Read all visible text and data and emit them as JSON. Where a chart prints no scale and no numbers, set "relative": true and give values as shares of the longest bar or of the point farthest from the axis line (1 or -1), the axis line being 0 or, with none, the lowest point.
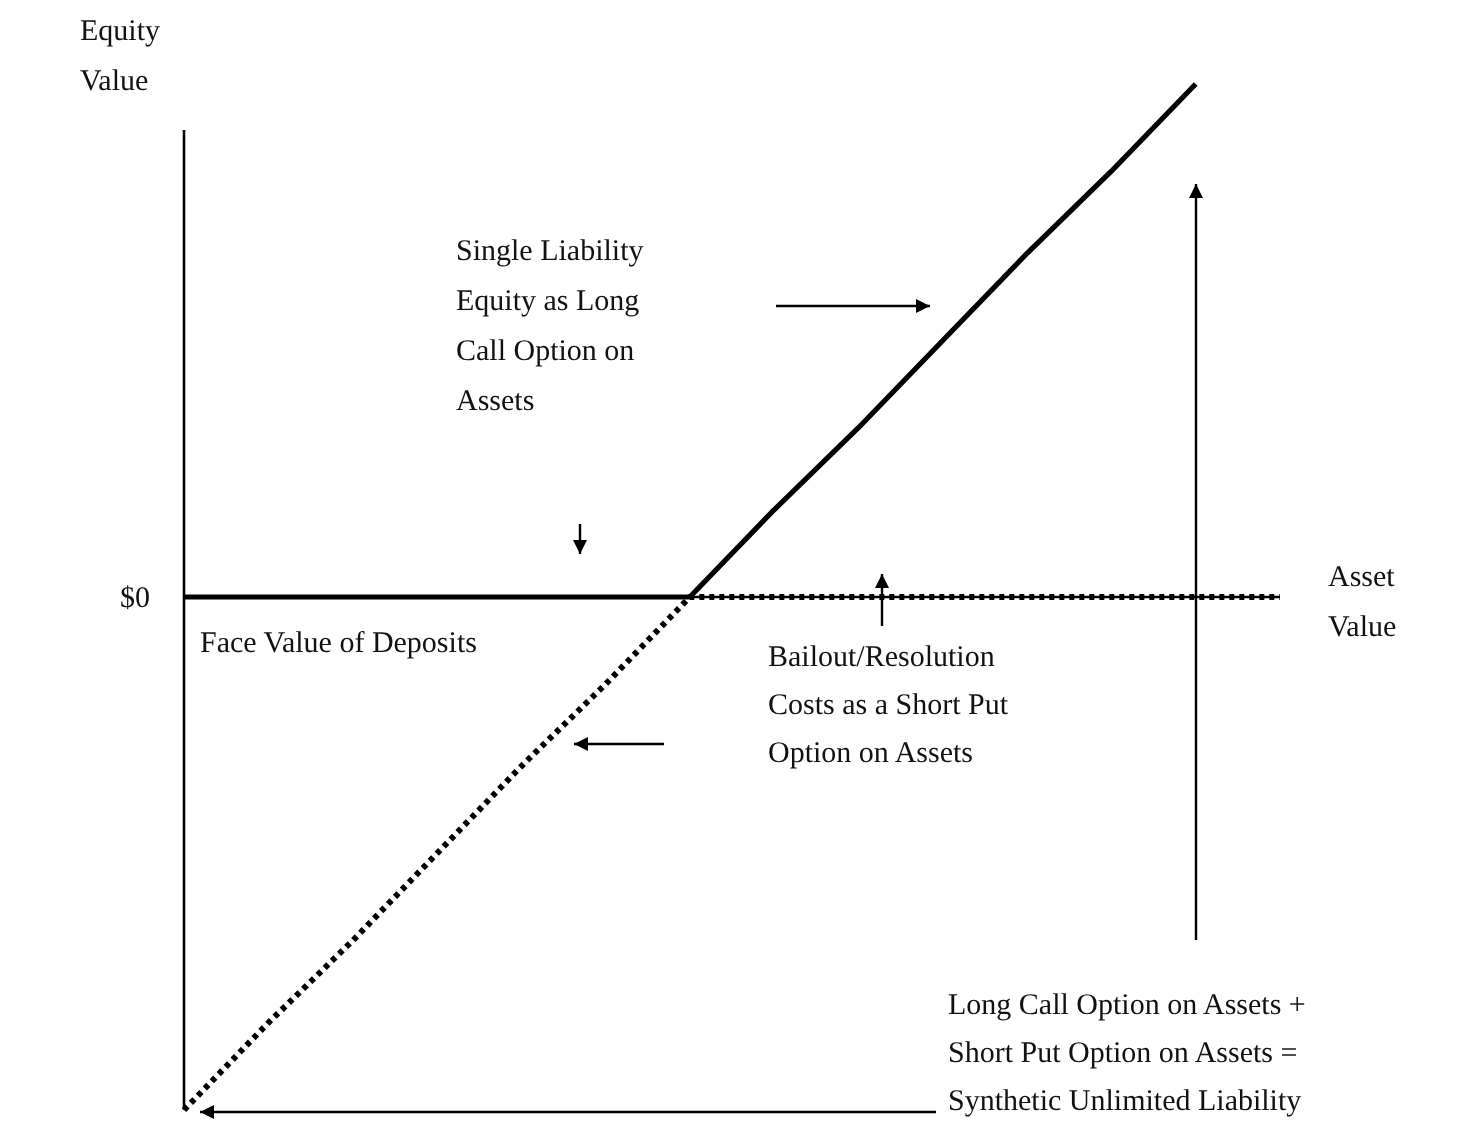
{
  "chart_data": {
    "type": "line",
    "relative": true,
    "xlabel": "Asset\nValue",
    "ylabel": "Equity\nValue",
    "categories": [
      null,
      null,
      null,
      null,
      null,
      null,
      null,
      null,
      null,
      null,
      null,
      null,
      null,
      null
    ],
    "series": [
      {
        "color": "#000000",
        "line_style": "solid",
        "values": [
          0,
          0,
          0,
          0,
          0,
          0,
          0,
          0.17,
          0.33,
          0.5,
          0.67,
          0.83,
          1,
          null
        ]
      },
      {
        "color": "#000000",
        "line_style": "dotted",
        "values": [
          -1,
          -0.83,
          -0.67,
          -0.5,
          -0.33,
          -0.17,
          0,
          0,
          0,
          0,
          0,
          0,
          0,
          0
        ]
      }
    ],
    "annotations": [
      "$0",
      "Single Liability\nEquity as Long\nCall Option on\nAssets",
      "Face Value of Deposits",
      "Bailout/Resolution\nCosts as a Short Put\nOption on Assets",
      "Long Call Option on Assets +\nShort Put Option on Assets =\nSynthetic Unlimited Liability"
    ],
    "marker": "none"
  }
}
